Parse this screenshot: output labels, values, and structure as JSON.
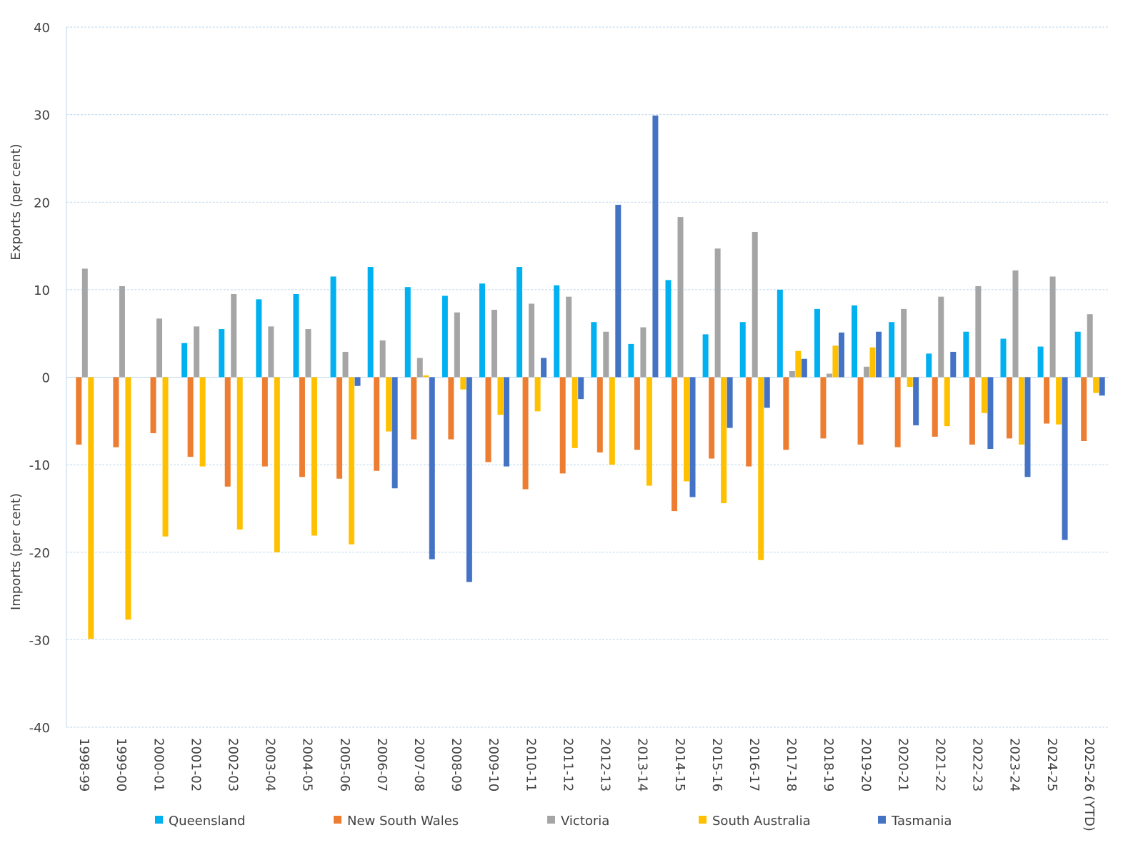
{
  "chart_data": {
    "type": "bar",
    "ylabel_top": "Exports (per cent)",
    "ylabel_bottom": "Imports (per cent)",
    "ylim": [
      -40,
      40
    ],
    "yticks": [
      40,
      30,
      20,
      10,
      0,
      -10,
      -20,
      -30,
      -40
    ],
    "grid": true,
    "legend_position": "bottom",
    "categories": [
      "1998-99",
      "1999-00",
      "2000-01",
      "2001-02",
      "2002-03",
      "2003-04",
      "2004-05",
      "2005-06",
      "2006-07",
      "2007-08",
      "2008-09",
      "2009-10",
      "2010-11",
      "2011-12",
      "2012-13",
      "2013-14",
      "2014-15",
      "2015-16",
      "2016-17",
      "2017-18",
      "2018-19",
      "2019-20",
      "2020-21",
      "2021-22",
      "2022-23",
      "2023-24",
      "2024-25",
      "2025-26 (YTD)"
    ],
    "series": [
      {
        "name": "Queensland",
        "color": "#00B0F0",
        "values": [
          0,
          0,
          0,
          3.9,
          5.5,
          8.9,
          9.5,
          11.5,
          12.6,
          10.3,
          9.3,
          10.7,
          12.6,
          10.5,
          6.3,
          3.8,
          11.1,
          4.9,
          6.3,
          10.0,
          7.8,
          8.2,
          6.3,
          2.7,
          5.2,
          4.4,
          3.5,
          5.2
        ]
      },
      {
        "name": "New South Wales",
        "color": "#ED7D31",
        "values": [
          -7.7,
          -8.0,
          -6.4,
          -9.1,
          -12.5,
          -10.2,
          -11.4,
          -11.6,
          -10.7,
          -7.1,
          -7.1,
          -9.7,
          -12.8,
          -11.0,
          -8.6,
          -8.3,
          -15.3,
          -9.3,
          -10.2,
          -8.3,
          -7.0,
          -7.7,
          -8.0,
          -6.8,
          -7.7,
          -7.0,
          -5.3,
          -7.3
        ]
      },
      {
        "name": "Victoria",
        "color": "#A5A5A5",
        "values": [
          12.4,
          10.4,
          6.7,
          5.8,
          9.5,
          5.8,
          5.5,
          2.9,
          4.2,
          2.2,
          7.4,
          7.7,
          8.4,
          9.2,
          5.2,
          5.7,
          18.3,
          14.7,
          16.6,
          0.7,
          0.4,
          1.2,
          7.8,
          9.2,
          10.4,
          12.2,
          11.5,
          7.2
        ]
      },
      {
        "name": "South Australia",
        "color": "#FFC000",
        "values": [
          -29.9,
          -27.7,
          -18.2,
          -10.2,
          -17.4,
          -20.0,
          -18.1,
          -19.1,
          -6.2,
          0.2,
          -1.4,
          -4.3,
          -3.9,
          -8.1,
          -10.0,
          -12.4,
          -11.9,
          -14.4,
          -20.9,
          3.0,
          3.6,
          3.4,
          -1.1,
          -5.6,
          -4.1,
          -7.7,
          -5.4,
          -1.8
        ]
      },
      {
        "name": "Tasmania",
        "color": "#4472C4",
        "values": [
          0,
          0,
          0,
          0,
          0,
          0,
          0,
          -1.0,
          -12.7,
          -20.8,
          -23.4,
          -10.2,
          2.2,
          -2.5,
          19.7,
          29.9,
          -13.7,
          -5.8,
          -3.5,
          2.1,
          5.1,
          5.2,
          -5.5,
          2.9,
          -8.2,
          -11.4,
          -18.6,
          -2.1
        ]
      }
    ]
  }
}
